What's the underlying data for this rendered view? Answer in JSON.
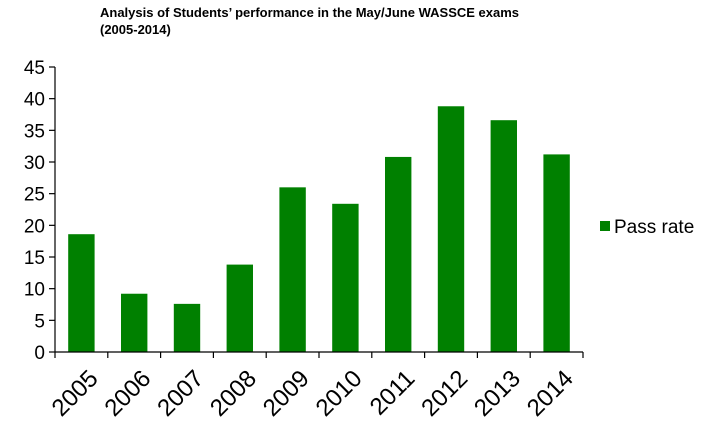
{
  "chart_data": {
    "type": "bar",
    "title_line1": "Analysis of Students’ performance in the May/June WASSCE exams",
    "title_line2": "(2005-2014)",
    "categories": [
      "2005",
      "2006",
      "2007",
      "2008",
      "2009",
      "2010",
      "2011",
      "2012",
      "2013",
      "2014"
    ],
    "series": [
      {
        "name": "Pass rate",
        "values": [
          18.6,
          9.2,
          7.6,
          13.8,
          26.0,
          23.4,
          30.8,
          38.8,
          36.6,
          31.2
        ]
      }
    ],
    "ylim": [
      0,
      45
    ],
    "yticks": [
      0,
      5,
      10,
      15,
      20,
      25,
      30,
      35,
      40,
      45
    ],
    "grid": false,
    "legend_position": "right",
    "colors": {
      "bar": "#008000",
      "axis": "#000000"
    }
  }
}
